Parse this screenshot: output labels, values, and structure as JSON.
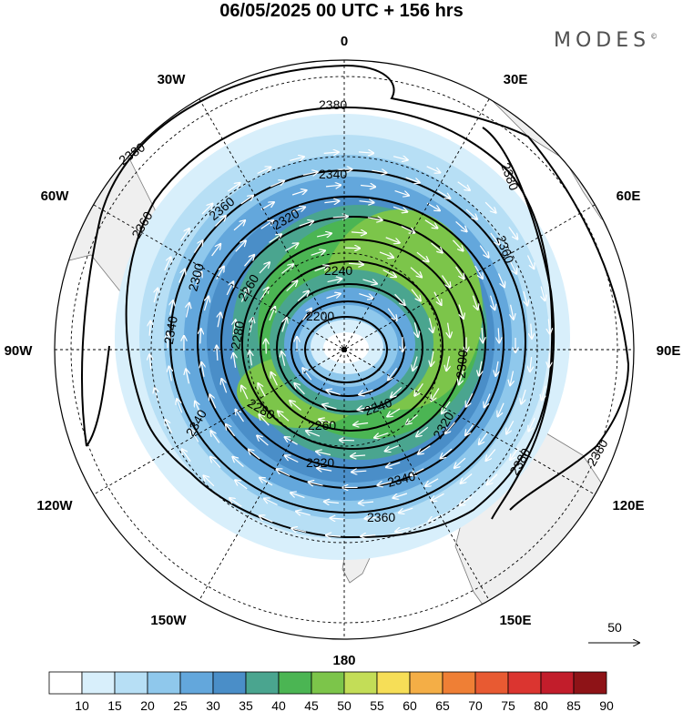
{
  "title": "06/05/2025  00 UTC  + 156 hrs",
  "brand": "MODES",
  "brand_mark": "©",
  "map": {
    "projection": "south-polar-stereographic",
    "longitude_labels": [
      "0",
      "30E",
      "60E",
      "90E",
      "120E",
      "150E",
      "180",
      "150W",
      "120W",
      "90W",
      "60W",
      "30W"
    ],
    "contour_labels": [
      "2380",
      "2380",
      "2380",
      "2380",
      "2380",
      "2360",
      "2360",
      "2360",
      "2360",
      "2340",
      "2340",
      "2340",
      "2340",
      "2320",
      "2320",
      "2320",
      "2300",
      "2300",
      "2280",
      "2280",
      "2260",
      "2260",
      "2240",
      "2240",
      "2200"
    ],
    "reference_vector": "50",
    "fill_color_land": "#efefef",
    "contour_color": "#000000",
    "arrow_color": "#ffffff"
  },
  "colorbar": {
    "levels": [
      "10",
      "15",
      "20",
      "25",
      "30",
      "35",
      "40",
      "45",
      "50",
      "55",
      "60",
      "65",
      "70",
      "75",
      "80",
      "85",
      "90"
    ],
    "colors": [
      "#ffffff",
      "#d8effb",
      "#b7dff5",
      "#8fc8ec",
      "#63a7dc",
      "#4a8ec8",
      "#4aa58f",
      "#4bb553",
      "#7cc54a",
      "#c3dd57",
      "#f6de57",
      "#f4ae46",
      "#ef7f35",
      "#e85a32",
      "#db3530",
      "#c21d2b",
      "#8e1317"
    ]
  }
}
